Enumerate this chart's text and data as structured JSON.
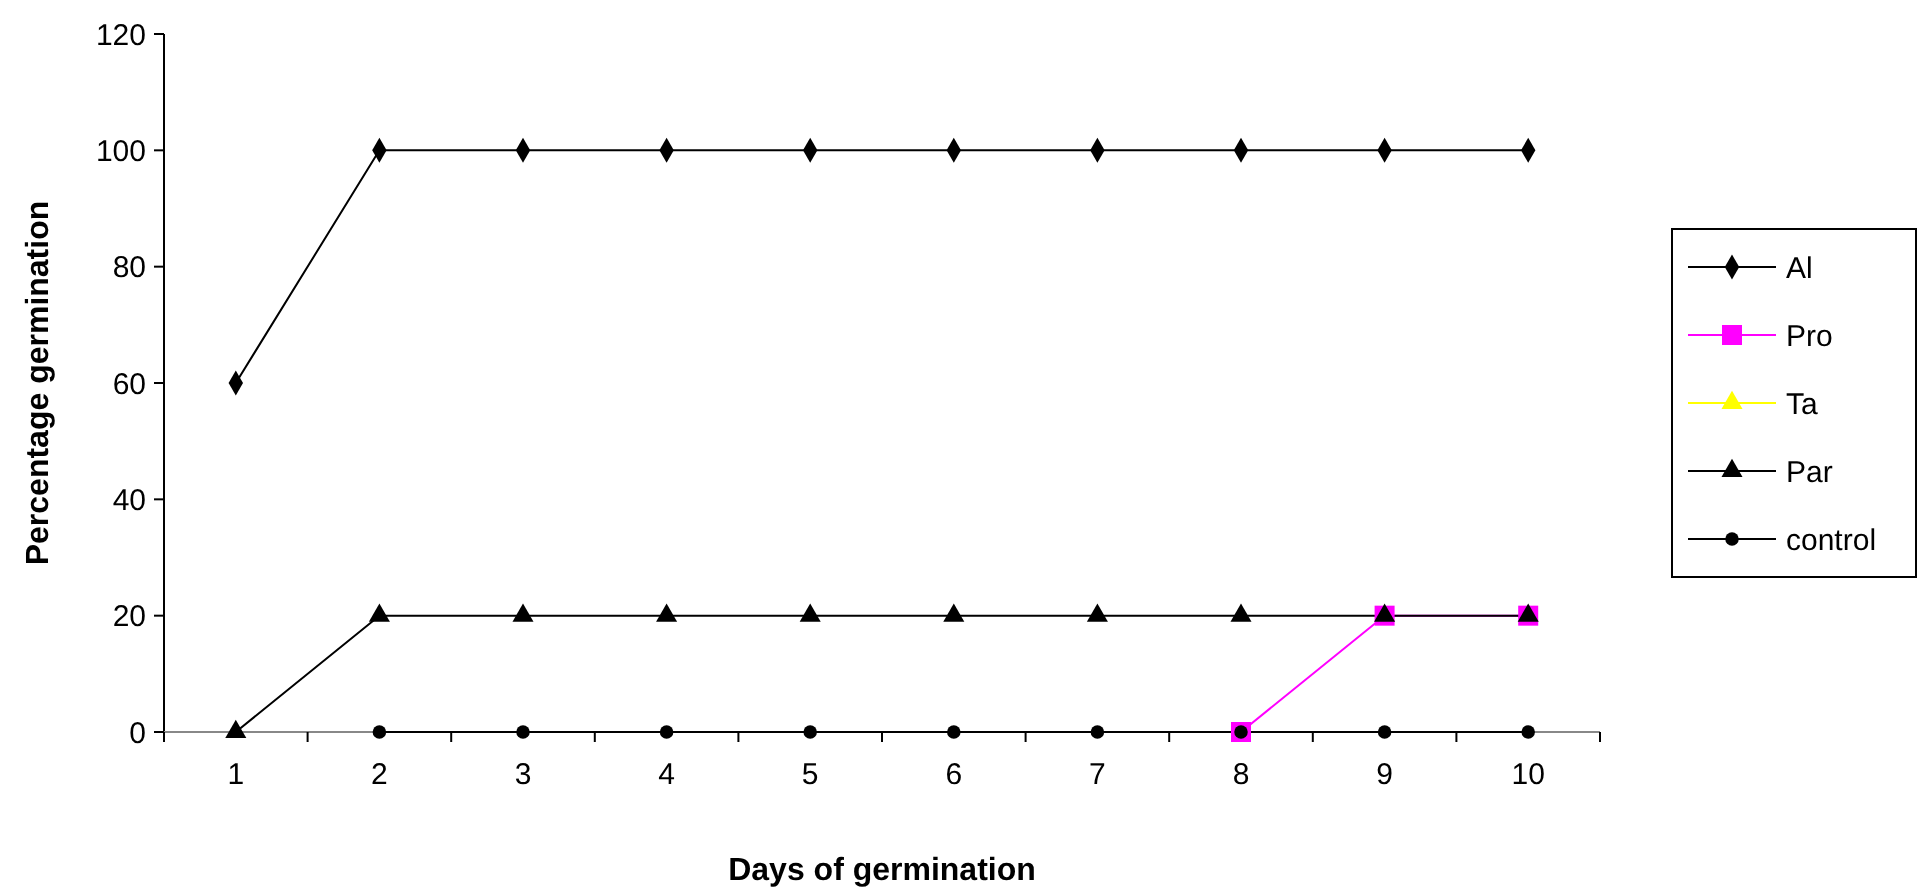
{
  "chart_data": {
    "type": "line",
    "xlabel": "Days of germination",
    "ylabel": "Percentage germination",
    "categories": [
      "1",
      "2",
      "3",
      "4",
      "5",
      "6",
      "7",
      "8",
      "9",
      "10"
    ],
    "ylim": [
      0,
      120
    ],
    "yticks": [
      0,
      20,
      40,
      60,
      80,
      100,
      120
    ],
    "grid": false,
    "legend": "right",
    "line_style": "solid",
    "series": [
      {
        "name": "Al",
        "color": "#000000",
        "marker": "diamond",
        "values": [
          60,
          100,
          100,
          100,
          100,
          100,
          100,
          100,
          100,
          100
        ]
      },
      {
        "name": "Pro",
        "color": "#ff00ff",
        "marker": "square",
        "values": [
          null,
          null,
          null,
          null,
          null,
          null,
          null,
          0,
          20,
          20
        ]
      },
      {
        "name": "Ta",
        "color": "#ffff00",
        "marker": "triangle",
        "values": [
          null,
          null,
          null,
          null,
          null,
          null,
          null,
          null,
          null,
          null
        ]
      },
      {
        "name": "Par",
        "color": "#000000",
        "marker": "triangle",
        "values": [
          0,
          20,
          20,
          20,
          20,
          20,
          20,
          20,
          20,
          20
        ]
      },
      {
        "name": "control",
        "color": "#000000",
        "marker": "circle",
        "values": [
          null,
          0,
          0,
          0,
          0,
          0,
          0,
          0,
          0,
          0
        ]
      }
    ]
  }
}
